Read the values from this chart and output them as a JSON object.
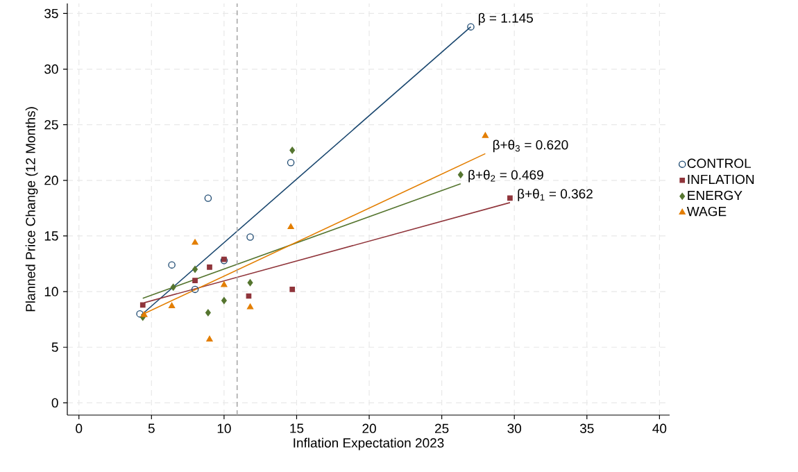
{
  "chart_data": {
    "type": "scatter",
    "xlabel": "Inflation Expectation 2023",
    "ylabel": "Planned Price Change (12 Months)",
    "xlim": [
      -0.8,
      40.7
    ],
    "ylim": [
      -1.1,
      35.9
    ],
    "xticks": [
      0,
      5,
      10,
      15,
      20,
      25,
      30,
      35,
      40
    ],
    "yticks": [
      0,
      5,
      10,
      15,
      20,
      25,
      30,
      35
    ],
    "grid": true,
    "legend": "right",
    "series": [
      {
        "name": "CONTROL",
        "color": "#1a476f",
        "marker": "circle",
        "x": [
          4.2,
          6.4,
          8.0,
          8.9,
          10.0,
          11.8,
          14.6,
          27.0
        ],
        "values": [
          8.0,
          12.4,
          10.2,
          18.4,
          12.8,
          14.9,
          21.6,
          33.8
        ]
      },
      {
        "name": "INFLATION",
        "color": "#90353b",
        "marker": "square",
        "x": [
          4.4,
          8.0,
          9.0,
          10.0,
          11.7,
          14.7,
          29.7
        ],
        "values": [
          8.8,
          11.0,
          12.2,
          12.9,
          9.6,
          10.2,
          18.4
        ]
      },
      {
        "name": "ENERGY",
        "color": "#55752f",
        "marker": "diamond",
        "x": [
          4.4,
          6.5,
          8.0,
          8.9,
          10.0,
          11.8,
          14.7,
          26.3
        ],
        "values": [
          7.7,
          10.4,
          12.0,
          8.1,
          9.2,
          10.8,
          22.7,
          20.5
        ]
      },
      {
        "name": "WAGE",
        "color": "#e37e00",
        "marker": "triangle",
        "x": [
          4.5,
          6.4,
          8.0,
          9.0,
          10.0,
          11.8,
          14.6,
          28.0
        ],
        "values": [
          7.9,
          8.7,
          14.4,
          5.7,
          10.6,
          8.6,
          15.8,
          24.0
        ]
      },
      {
        "type": "line",
        "color": "#1a476f",
        "marker": "none",
        "x": [
          4.3,
          27.0
        ],
        "values": [
          7.9,
          33.8
        ]
      },
      {
        "type": "line",
        "color": "#90353b",
        "marker": "none",
        "x": [
          4.5,
          29.7
        ],
        "values": [
          9.0,
          18.0
        ]
      },
      {
        "type": "line",
        "color": "#55752f",
        "marker": "none",
        "x": [
          4.4,
          26.3
        ],
        "values": [
          9.4,
          19.7
        ]
      },
      {
        "type": "line",
        "color": "#e37e00",
        "marker": "none",
        "x": [
          4.3,
          28.0
        ],
        "values": [
          7.9,
          22.4
        ]
      }
    ],
    "ref_lines": [
      {
        "axis": "x",
        "value": 10.9,
        "color": "#a8a8a8",
        "line_style": "dashed"
      }
    ],
    "annotations": [
      "β = 1.145",
      "β+θ$_{1}$ = 0.362",
      "β+θ$_{2}$ = 0.469",
      "β+θ$_{3}$ = 0.620"
    ]
  }
}
